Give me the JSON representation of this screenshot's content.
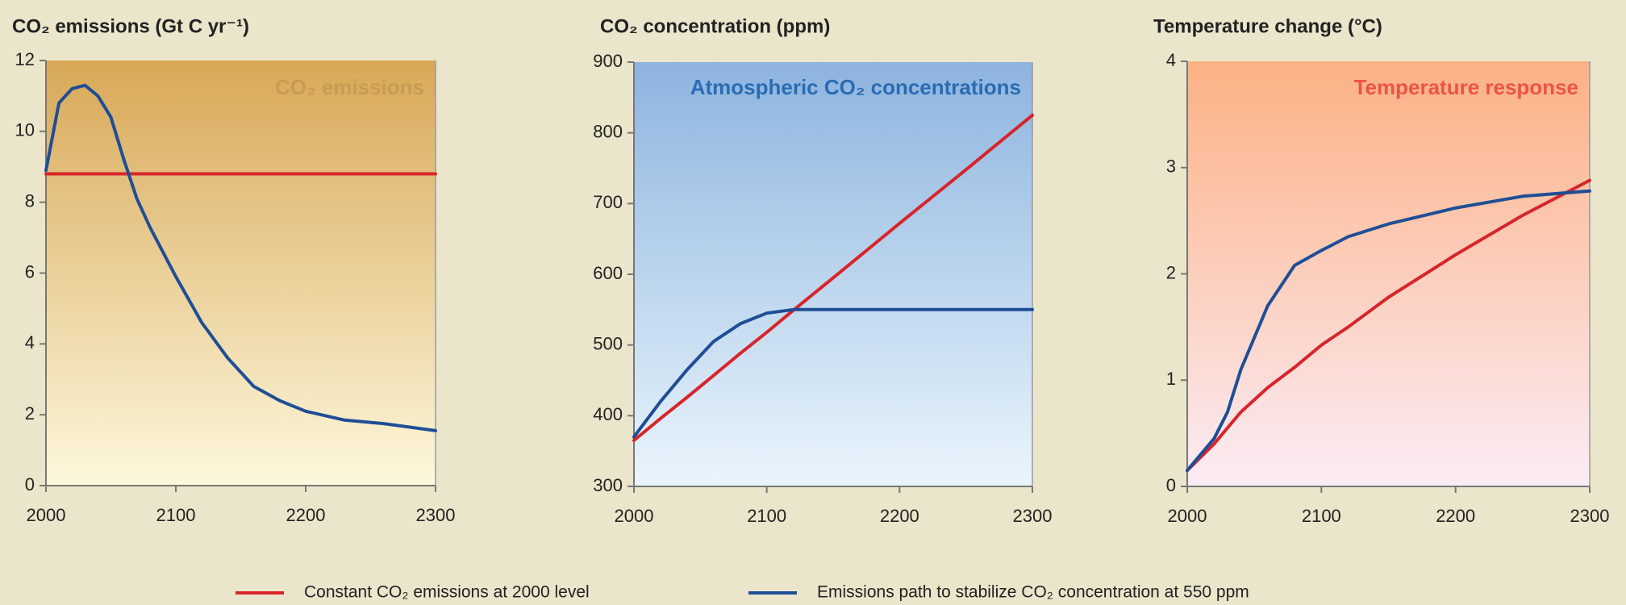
{
  "chart_data": [
    {
      "type": "line",
      "title": "CO₂ emissions (Gt C yr⁻¹)",
      "panel_label": "CO₂ emissions",
      "x": [
        2000,
        2010,
        2020,
        2030,
        2040,
        2050,
        2060,
        2070,
        2080,
        2100,
        2120,
        2140,
        2160,
        2180,
        2200,
        2230,
        2260,
        2300
      ],
      "series": [
        {
          "color": "#d7252b",
          "values": [
            8.8,
            8.8,
            8.8,
            8.8,
            8.8,
            8.8,
            8.8,
            8.8,
            8.8,
            8.8,
            8.8,
            8.8,
            8.8,
            8.8,
            8.8,
            8.8,
            8.8,
            8.8
          ]
        },
        {
          "color": "#1f4e96",
          "values": [
            8.9,
            10.8,
            11.2,
            11.3,
            11.0,
            10.4,
            9.2,
            8.1,
            7.3,
            5.9,
            4.6,
            3.6,
            2.8,
            2.4,
            2.1,
            1.85,
            1.75,
            1.55
          ]
        }
      ],
      "xlim": [
        2000,
        2300
      ],
      "xticks": [
        2000,
        2100,
        2200,
        2300
      ],
      "ylim": [
        0,
        12
      ],
      "yticks": [
        0,
        2,
        4,
        6,
        8,
        10,
        12
      ]
    },
    {
      "type": "line",
      "title": "CO₂ concentration (ppm)",
      "panel_label": "Atmospheric CO₂ concentrations",
      "x": [
        2000,
        2020,
        2040,
        2060,
        2080,
        2100,
        2120,
        2150,
        2200,
        2250,
        2300
      ],
      "series": [
        {
          "color": "#d7252b",
          "values": [
            365,
            396,
            426,
            457,
            488,
            518,
            549,
            595,
            672,
            748,
            825
          ]
        },
        {
          "color": "#1f4e96",
          "values": [
            370,
            420,
            465,
            505,
            530,
            545,
            550,
            550,
            550,
            550,
            550
          ]
        }
      ],
      "xlim": [
        2000,
        2300
      ],
      "xticks": [
        2000,
        2100,
        2200,
        2300
      ],
      "ylim": [
        300,
        900
      ],
      "yticks": [
        300,
        400,
        500,
        600,
        700,
        800,
        900
      ]
    },
    {
      "type": "line",
      "title": "Temperature change (°C)",
      "panel_label": "Temperature response",
      "x": [
        2000,
        2020,
        2030,
        2040,
        2060,
        2080,
        2100,
        2120,
        2150,
        2200,
        2250,
        2300
      ],
      "series": [
        {
          "color": "#d7252b",
          "values": [
            0.15,
            0.4,
            0.55,
            0.7,
            0.93,
            1.12,
            1.33,
            1.5,
            1.78,
            2.18,
            2.55,
            2.88
          ]
        },
        {
          "color": "#1f4e96",
          "values": [
            0.15,
            0.45,
            0.7,
            1.1,
            1.7,
            2.08,
            2.22,
            2.35,
            2.47,
            2.62,
            2.73,
            2.78
          ]
        }
      ],
      "xlim": [
        2000,
        2300
      ],
      "xticks": [
        2000,
        2100,
        2200,
        2300
      ],
      "ylim": [
        0,
        4
      ],
      "yticks": [
        0,
        1,
        2,
        3,
        4
      ]
    }
  ],
  "legend": [
    {
      "name": "Constant CO₂ emissions at 2000 level",
      "color": "#d7252b"
    },
    {
      "name": "Emissions path to stabilize CO₂ concentration at 550 ppm",
      "color": "#1f4e96"
    }
  ]
}
